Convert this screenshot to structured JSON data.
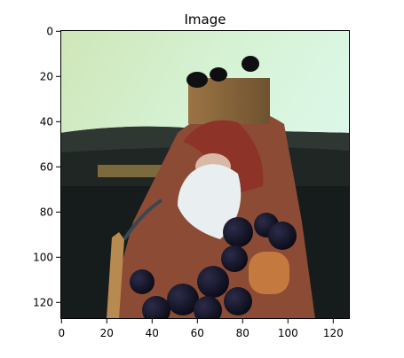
{
  "figure": {
    "title": "Image",
    "x_ticks": [
      "0",
      "20",
      "40",
      "60",
      "80",
      "100",
      "120"
    ],
    "y_ticks": [
      "0",
      "20",
      "40",
      "60",
      "80",
      "100",
      "120"
    ]
  },
  "colors": {
    "background_wall": "#d2f0d2",
    "couch": "#1f2422",
    "wood_box": "#8a6a3a",
    "santa_red": "#8a3a2a",
    "beard": "#e8eef0",
    "grapes": "#121224",
    "axes_frame": "#000000"
  }
}
